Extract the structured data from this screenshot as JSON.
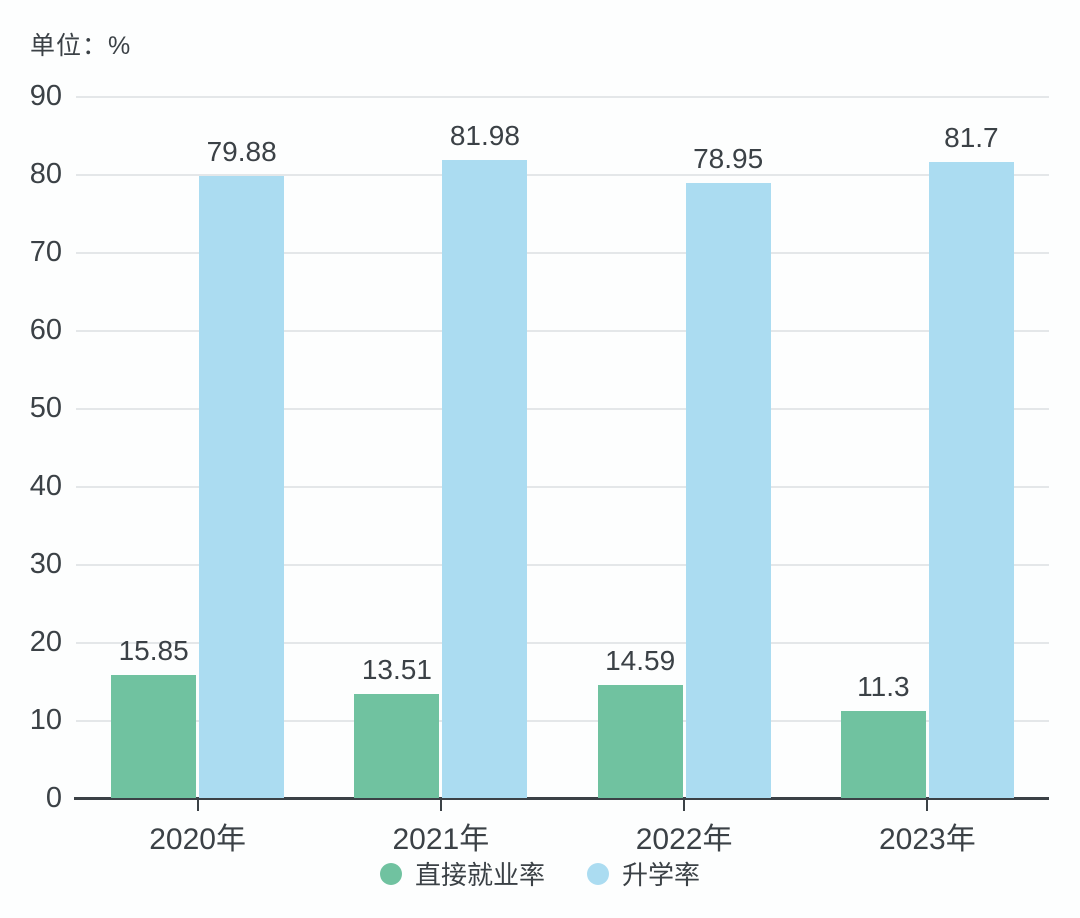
{
  "unit_label": "单位：%",
  "colors": {
    "employment_series": "#70c2a0",
    "enrollment_series": "#abdcf1",
    "text": "#3b4146",
    "gridline": "#e4e7e9",
    "axis": "#3b4146",
    "background": "#fdfefe"
  },
  "legend": {
    "items": [
      {
        "label": "直接就业率",
        "color": "#70c2a0"
      },
      {
        "label": "升学率",
        "color": "#abdcf1"
      }
    ]
  },
  "chart_data": {
    "type": "bar",
    "title": "",
    "unit": "单位：%",
    "categories": [
      "2020年",
      "2021年",
      "2022年",
      "2023年"
    ],
    "series": [
      {
        "name": "直接就业率",
        "color": "#70c2a0",
        "values": [
          15.85,
          13.51,
          14.59,
          11.3
        ]
      },
      {
        "name": "升学率",
        "color": "#abdcf1",
        "values": [
          79.88,
          81.98,
          78.95,
          81.7
        ]
      }
    ],
    "value_labels": [
      "15.85",
      "13.51",
      "14.59",
      "11.3",
      "79.88",
      "81.98",
      "78.95",
      "81.7"
    ],
    "xlabel": "",
    "ylabel": "",
    "ylim": [
      0,
      90
    ],
    "yticks": [
      0,
      10,
      20,
      30,
      40,
      50,
      60,
      70,
      80,
      90
    ],
    "grid": true,
    "legend_position": "bottom"
  }
}
